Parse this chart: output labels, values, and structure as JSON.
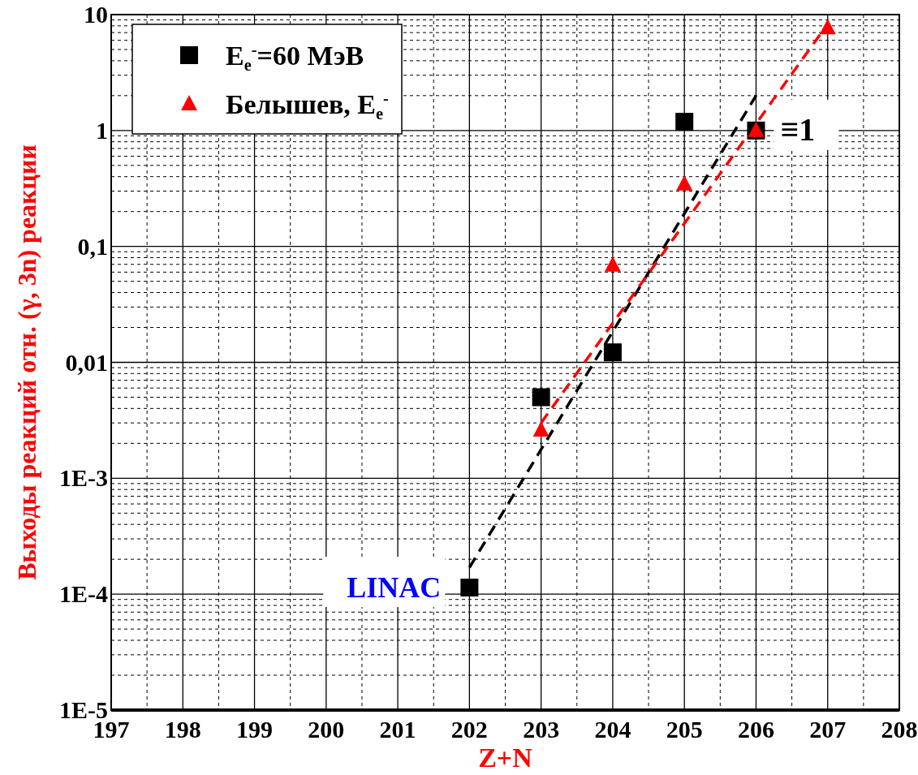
{
  "chart_data": {
    "type": "scatter",
    "xlabel": "Z+N",
    "ylabel": "Выходы реакций отн. (γ, 3n) реакции",
    "log": "y",
    "xlim": [
      197,
      208
    ],
    "xticks": [
      197,
      198,
      199,
      200,
      201,
      202,
      203,
      204,
      205,
      206,
      207,
      208
    ],
    "ylim": [
      1e-05,
      10
    ],
    "yticks": [
      {
        "value": 1e-05,
        "label": "1E-5"
      },
      {
        "value": 0.0001,
        "label": "1E-4"
      },
      {
        "value": 0.001,
        "label": "1E-3"
      },
      {
        "value": 0.01,
        "label": "0,01"
      },
      {
        "value": 0.1,
        "label": "0,1"
      },
      1,
      10
    ],
    "grid": true,
    "legend": "top left",
    "series": [
      {
        "name": "E$_{e}$$^{-}$=60 МэВ",
        "color": "#000000",
        "marker": "square",
        "x": [
          202,
          203,
          204,
          205,
          206
        ],
        "values": [
          0.000114,
          0.005,
          0.0122,
          1.19,
          1
        ]
      },
      {
        "name": "Белышев, E$_{e}$$^{-}$",
        "color": "#ff0000",
        "marker": "triangle",
        "x": [
          203,
          204,
          205,
          206,
          207
        ],
        "values": [
          0.0026,
          0.069,
          0.345,
          1,
          7.7
        ]
      },
      {
        "type": "line",
        "color": "#000000",
        "line_style": "dashed",
        "x": [
          202,
          206
        ],
        "values": [
          0.00017,
          2
        ]
      },
      {
        "type": "line",
        "color": "#ff0000",
        "line_style": "dashed",
        "x": [
          203,
          207
        ],
        "values": [
          0.003,
          8.3
        ]
      }
    ],
    "annotations": [
      {
        "text": "LINAC",
        "x": 202,
        "y": 0.000114
      },
      {
        "text": "≡1",
        "x": 206,
        "y": 1
      }
    ]
  }
}
